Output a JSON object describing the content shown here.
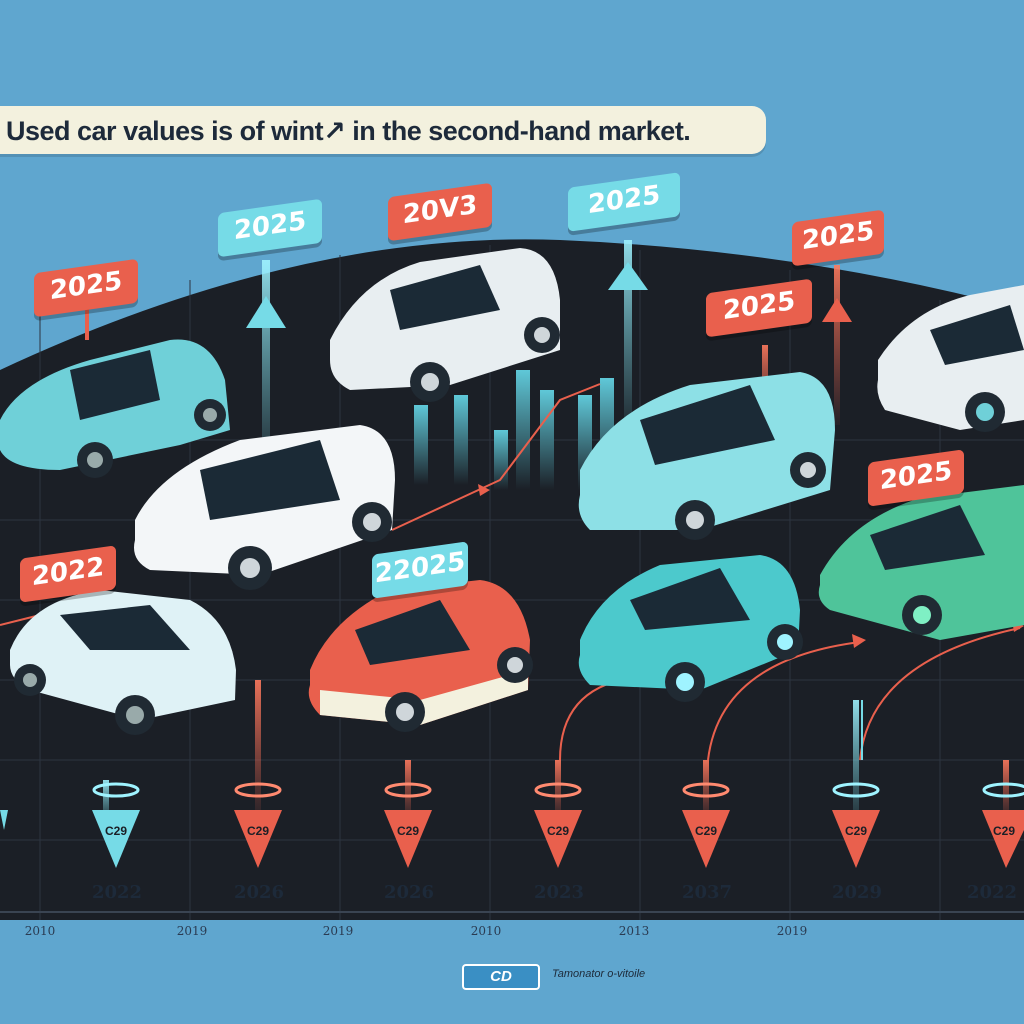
{
  "title": "Used car values is of wint↗ in the second-hand market.",
  "tags": [
    {
      "label": "2025",
      "style": "red"
    },
    {
      "label": "2025",
      "style": "cyan"
    },
    {
      "label": "20V3",
      "style": "red"
    },
    {
      "label": "2025",
      "style": "cyan"
    },
    {
      "label": "2025",
      "style": "red"
    },
    {
      "label": "2025",
      "style": "red"
    },
    {
      "label": "2022",
      "style": "red"
    },
    {
      "label": "22025",
      "style": "cyan"
    },
    {
      "label": "2025",
      "style": "red"
    }
  ],
  "pin_labels": [
    "C29",
    "C29",
    "C29",
    "C29",
    "C29",
    "C29",
    "C29"
  ],
  "timeline_years": [
    "2022",
    "2026",
    "2026",
    "2023",
    "2037",
    "2029",
    "2022"
  ],
  "axis_years": [
    "2010",
    "2019",
    "2019",
    "2010",
    "2013",
    "2019"
  ],
  "footer": {
    "logo": "CD",
    "text": "Tamonator o-vitoile"
  },
  "colors": {
    "background": "#5fa6cf",
    "stage": "#1b1f26",
    "accent_red": "#e9604d",
    "accent_cyan": "#76dbe7"
  }
}
